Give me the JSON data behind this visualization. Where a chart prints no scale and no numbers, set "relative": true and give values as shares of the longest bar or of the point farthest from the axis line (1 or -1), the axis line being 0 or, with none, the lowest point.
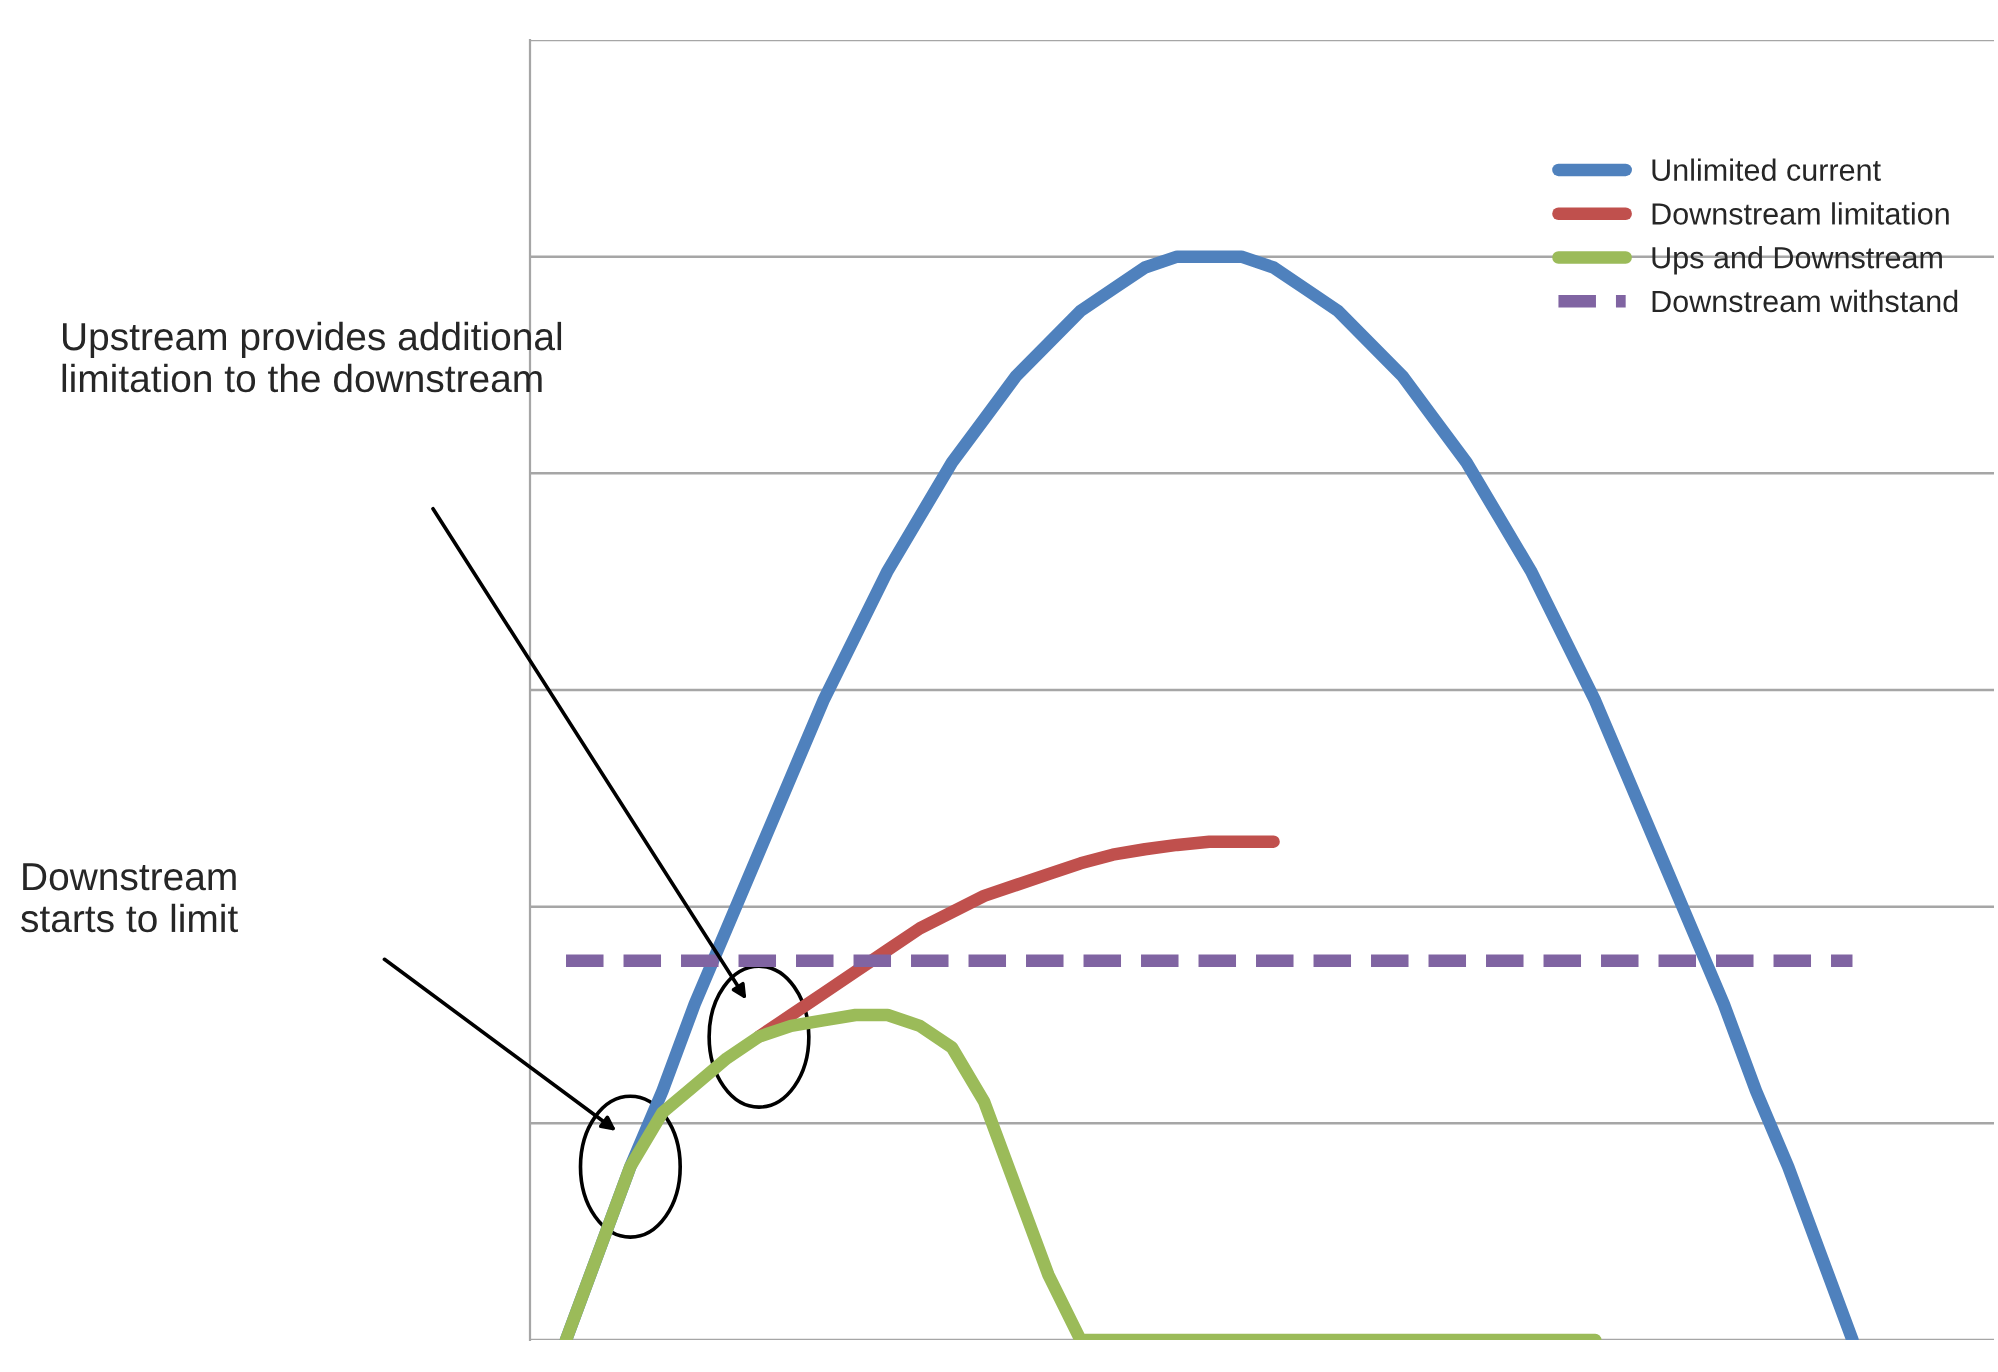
{
  "chart_data": {
    "type": "line",
    "relative": true,
    "grid": "y",
    "legend": "top right",
    "line_style": "solid",
    "marker": "none",
    "categories": [
      null,
      null,
      null,
      null,
      null,
      null,
      null,
      null,
      null,
      null,
      null,
      null,
      null,
      null,
      null,
      null,
      null,
      null,
      null,
      null,
      null,
      null,
      null,
      null,
      null,
      null,
      null,
      null,
      null,
      null,
      null,
      null,
      null,
      null,
      null,
      null,
      null,
      null,
      null,
      null,
      null
    ],
    "series": [
      {
        "name": "Unlimited current",
        "color": "#4f81bd",
        "values": [
          0,
          0.08,
          0.16,
          0.23,
          0.31,
          0.38,
          0.45,
          0.52,
          0.59,
          0.65,
          0.71,
          0.76,
          0.81,
          0.85,
          0.89,
          0.92,
          0.95,
          0.97,
          0.99,
          1.0,
          1.0,
          1.0,
          0.99,
          0.97,
          0.95,
          0.92,
          0.89,
          0.85,
          0.81,
          0.76,
          0.71,
          0.65,
          0.59,
          0.52,
          0.45,
          0.38,
          0.31,
          0.23,
          0.16,
          0.08,
          0
        ]
      },
      {
        "name": "Downstream limitation",
        "color": "#c0504d",
        "values": [
          null,
          null,
          null,
          null,
          null,
          null,
          0.28,
          0.3,
          0.32,
          0.34,
          0.36,
          0.38,
          0.395,
          0.41,
          0.42,
          0.43,
          0.44,
          0.448,
          0.453,
          0.457,
          0.46,
          0.46,
          0.46,
          null,
          null,
          null,
          null,
          null,
          null,
          null,
          null,
          null,
          null,
          null,
          null,
          null,
          null,
          null,
          null,
          null,
          null
        ]
      },
      {
        "name": "Ups and Downstream",
        "color": "#9bbb59",
        "values": [
          0,
          0.08,
          0.16,
          0.21,
          0.235,
          0.26,
          0.28,
          0.29,
          0.295,
          0.3,
          0.3,
          0.29,
          0.27,
          0.22,
          0.14,
          0.06,
          0,
          0,
          0,
          0,
          0,
          0,
          0,
          0,
          0,
          0,
          0,
          0,
          0,
          0,
          0,
          0,
          0,
          null,
          null,
          null,
          null,
          null,
          null,
          null,
          null
        ]
      },
      {
        "name": "Downstream withstand",
        "color": "#8064a2",
        "line_style": "dashed",
        "values": [
          0.35,
          0.35,
          0.35,
          0.35,
          0.35,
          0.35,
          0.35,
          0.35,
          0.35,
          0.35,
          0.35,
          0.35,
          0.35,
          0.35,
          0.35,
          0.35,
          0.35,
          0.35,
          0.35,
          0.35,
          0.35,
          0.35,
          0.35,
          0.35,
          0.35,
          0.35,
          0.35,
          0.35,
          0.35,
          0.35,
          0.35,
          0.35,
          0.35,
          0.35,
          0.35,
          0.35,
          0.35,
          0.35,
          0.35,
          0.35,
          0.35
        ]
      }
    ],
    "annotations": [
      "Upstream provides additional\nlimitation to the downstream",
      "Downstream\nstarts to limit"
    ]
  }
}
